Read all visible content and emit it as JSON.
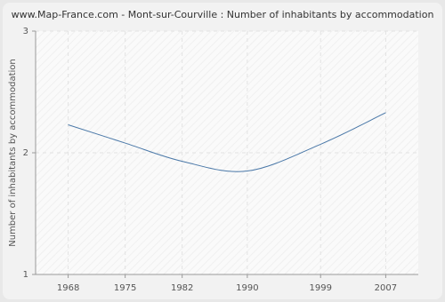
{
  "chart_data": {
    "type": "line",
    "title": "www.Map-France.com - Mont-sur-Courville : Number of inhabitants by accommodation",
    "y_label": "Number of inhabitants by accommodation",
    "x": [
      1968,
      1975,
      1982,
      1990,
      1999,
      2007
    ],
    "series": [
      {
        "name": "Number of inhabitants by accommodation",
        "color": "#4a78a8",
        "values": [
          2.23,
          2.08,
          1.93,
          1.85,
          2.07,
          2.33
        ]
      }
    ],
    "xlim": [
      1964,
      2011
    ],
    "xticks": [
      1968,
      1975,
      1982,
      1990,
      1999,
      2007
    ],
    "ylim": [
      1,
      3
    ],
    "yticks": [
      1,
      2,
      3
    ],
    "grid": true
  }
}
